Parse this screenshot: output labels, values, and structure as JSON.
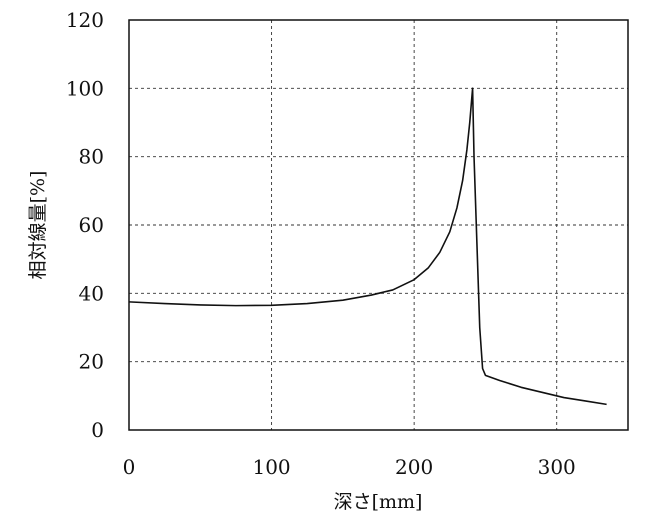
{
  "chart_data": {
    "type": "line",
    "xlabel": "深さ[mm]",
    "ylabel": "相対線量[%]",
    "xlim": [
      0,
      350
    ],
    "ylim": [
      0,
      120
    ],
    "xticks": [
      0,
      100,
      200,
      300
    ],
    "yticks": [
      0,
      20,
      40,
      60,
      80,
      100,
      120
    ],
    "xtick_labels": [
      "0",
      "100",
      "200",
      "300"
    ],
    "ytick_labels": [
      "0",
      "20",
      "40",
      "60",
      "80",
      "100",
      "120"
    ],
    "grid": true,
    "series": [
      {
        "x": [
          0,
          25,
          50,
          75,
          100,
          125,
          150,
          170,
          185,
          200,
          210,
          218,
          225,
          230,
          234,
          237,
          239,
          240,
          241,
          242,
          244,
          246,
          248,
          250,
          260,
          275,
          290,
          305,
          320,
          335
        ],
        "y": [
          37.5,
          37.0,
          36.6,
          36.4,
          36.5,
          37.0,
          38.0,
          39.5,
          41.0,
          44.0,
          47.5,
          52.0,
          58.0,
          65.0,
          73.0,
          82.0,
          90.0,
          95.0,
          100.0,
          80.0,
          55.0,
          30.0,
          18.0,
          16.0,
          14.5,
          12.5,
          11.0,
          9.5,
          8.5,
          7.5
        ]
      }
    ]
  }
}
